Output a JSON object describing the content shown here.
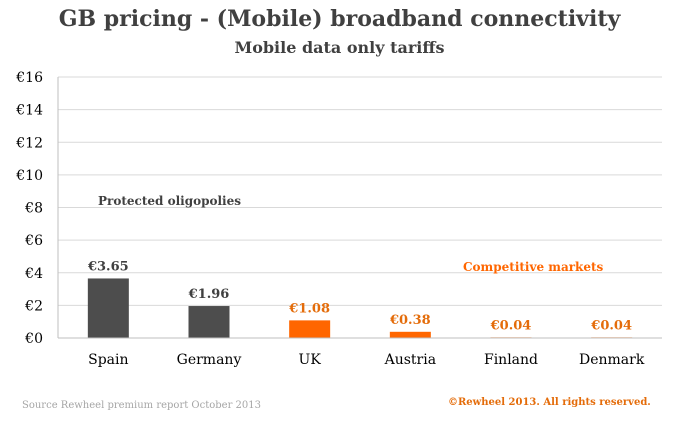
{
  "chart_data": {
    "type": "bar",
    "title": "GB pricing - (Mobile) broadband connectivity",
    "subtitle": "Mobile data only tariffs",
    "categories": [
      "Spain",
      "Germany",
      "UK",
      "Austria",
      "Finland",
      "Denmark"
    ],
    "values": [
      3.65,
      1.96,
      1.08,
      0.38,
      0.04,
      0.04
    ],
    "data_labels": [
      "€3.65",
      "€1.96",
      "€1.08",
      "€0.38",
      "€0.04",
      "€0.04"
    ],
    "ylim": [
      0,
      16
    ],
    "yticks": [
      "€0",
      "€2",
      "€4",
      "€6",
      "€8",
      "€10",
      "€12",
      "€14",
      "€16"
    ],
    "grid": true,
    "colors": {
      "grey": "#4d4d4d",
      "orange": "#ff6600",
      "grid": "#d9d9d9",
      "text": "#404040",
      "orange_label": "#e46c0a"
    },
    "bar_colors": [
      "#4d4d4d",
      "#4d4d4d",
      "#ff6600",
      "#ff6600",
      "#ff6600",
      "#ff6600"
    ],
    "annotations": [
      {
        "text": "Protected oligopolies",
        "color": "#404040"
      },
      {
        "text": "Competitive markets",
        "color": "#ff6600"
      }
    ]
  },
  "footer": {
    "source": "Source Rewheel premium report October 2013",
    "copyright": "©Rewheel 2013. All rights reserved."
  }
}
